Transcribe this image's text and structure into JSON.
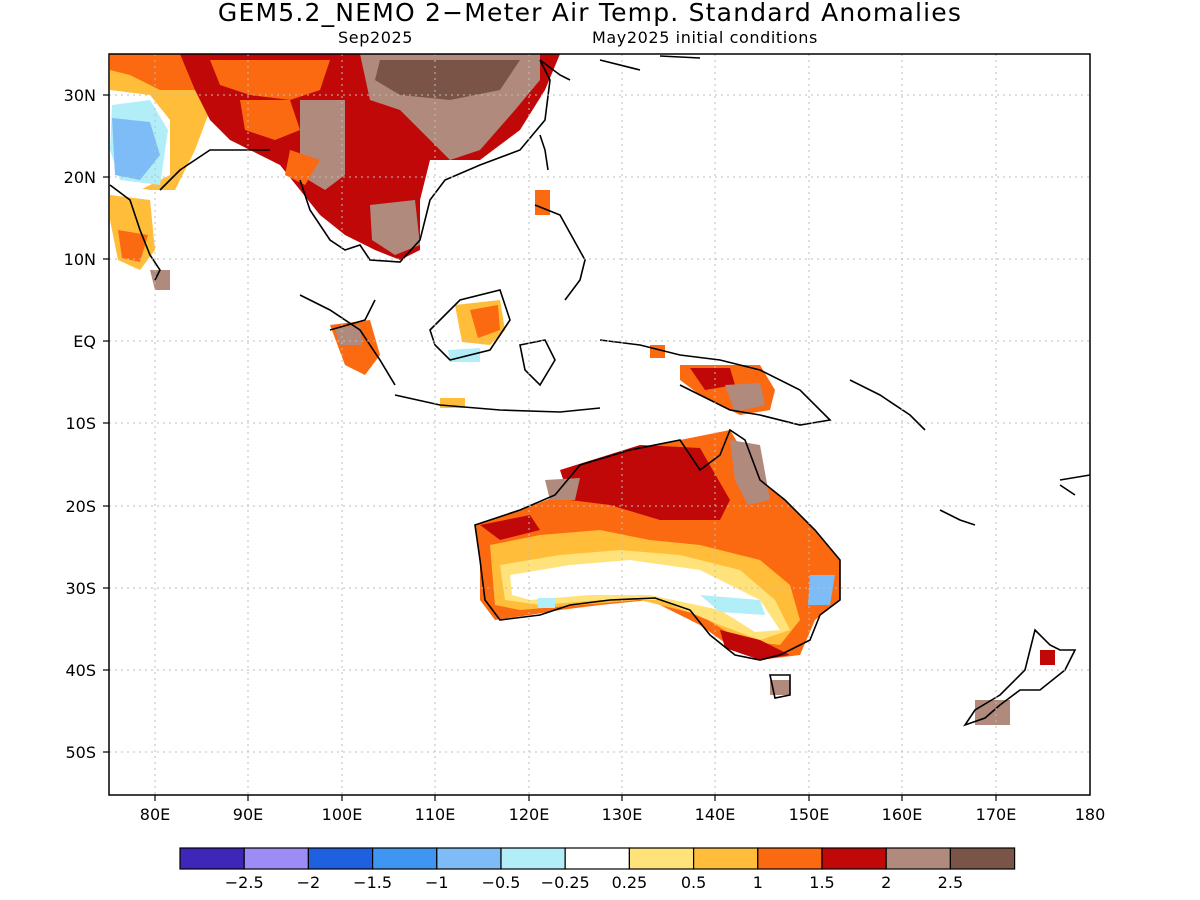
{
  "title": "GEM5.2_NEMO 2−Meter Air Temp. Standard Anomalies",
  "subtitle_left": "Sep2025",
  "subtitle_right": "May2025 initial conditions",
  "lat_ticks": [
    "30N",
    "20N",
    "10N",
    "EQ",
    "10S",
    "20S",
    "30S",
    "40S",
    "50S"
  ],
  "lon_ticks": [
    "80E",
    "90E",
    "100E",
    "110E",
    "120E",
    "130E",
    "140E",
    "150E",
    "160E",
    "170E",
    "180"
  ],
  "colorbar": {
    "colors": [
      "#3d26b8",
      "#9d8cf5",
      "#1f60e0",
      "#3e96f2",
      "#7dbcf6",
      "#b2eef8",
      "#ffffff",
      "#ffe27a",
      "#ffbd3a",
      "#fb6a10",
      "#c00808",
      "#b08a7c",
      "#7a5446"
    ],
    "labels": [
      "−2.5",
      "−2",
      "−1.5",
      "−1",
      "−0.5",
      "−0.25",
      "0.25",
      "0.5",
      "1",
      "1.5",
      "2",
      "2.5"
    ]
  }
}
